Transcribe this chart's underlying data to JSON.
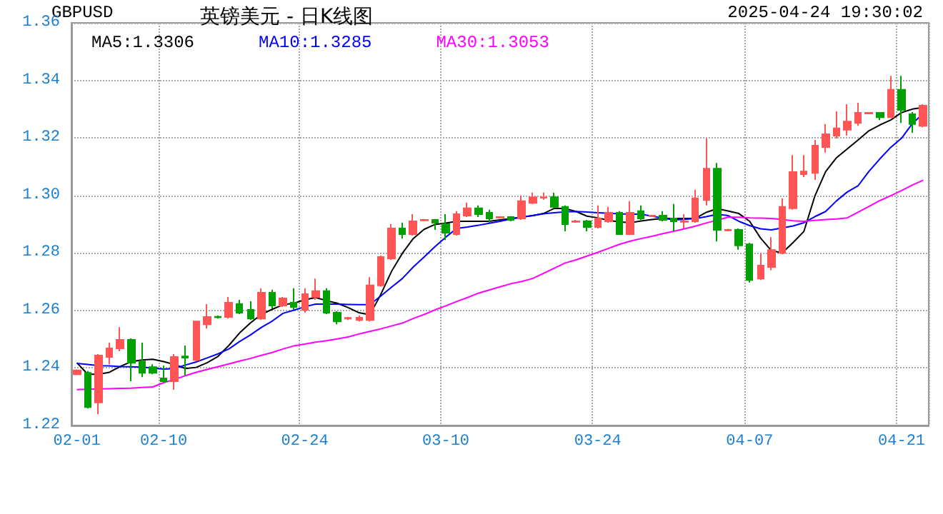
{
  "chart_data": {
    "type": "candlestick",
    "title": "英镑美元 - 日K线图",
    "annotations": [
      "GBPUSD",
      "2025-04-24 19:30:02"
    ],
    "categories": [
      "02-01",
      null,
      null,
      null,
      null,
      null,
      null,
      null,
      "02-10",
      null,
      null,
      null,
      null,
      null,
      null,
      null,
      null,
      null,
      null,
      null,
      null,
      "02-24",
      null,
      null,
      null,
      null,
      null,
      null,
      null,
      null,
      null,
      null,
      null,
      null,
      "03-10",
      null,
      null,
      null,
      null,
      null,
      null,
      null,
      null,
      null,
      null,
      null,
      null,
      null,
      "03-24",
      null,
      null,
      null,
      null,
      null,
      null,
      null,
      null,
      null,
      null,
      null,
      null,
      null,
      "04-07",
      null,
      null,
      null,
      null,
      null,
      null,
      null,
      null,
      null,
      null,
      null,
      null,
      null,
      "04-21",
      null,
      null
    ],
    "ohlc": [
      [
        1.2378,
        1.2395,
        1.2375,
        1.2392
      ],
      [
        1.2383,
        1.239,
        1.2259,
        1.2264
      ],
      [
        1.228,
        1.2448,
        1.2239,
        1.2443
      ],
      [
        1.2438,
        1.2488,
        1.2413,
        1.2468
      ],
      [
        1.2468,
        1.2542,
        1.2458,
        1.2498
      ],
      [
        1.2498,
        1.2503,
        1.2354,
        1.2418
      ],
      [
        1.2423,
        1.2488,
        1.2368,
        1.2383
      ],
      [
        1.2403,
        1.2413,
        1.2378,
        1.2383
      ],
      [
        1.2364,
        1.2408,
        1.2354,
        1.2354
      ],
      [
        1.2354,
        1.2448,
        1.2324,
        1.2438
      ],
      [
        1.244,
        1.2478,
        1.2374,
        1.2436
      ],
      [
        1.2428,
        1.2562,
        1.2423,
        1.2562
      ],
      [
        1.2552,
        1.2622,
        1.2537,
        1.2577
      ],
      [
        1.2578,
        1.2582,
        1.2572,
        1.2576
      ],
      [
        1.2577,
        1.2647,
        1.2572,
        1.2627
      ],
      [
        1.2622,
        1.2637,
        1.2587,
        1.2592
      ],
      [
        1.2602,
        1.2632,
        1.2567,
        1.2572
      ],
      [
        1.2572,
        1.2677,
        1.2567,
        1.2662
      ],
      [
        1.2662,
        1.2672,
        1.2607,
        1.2617
      ],
      [
        1.2617,
        1.2647,
        1.2612,
        1.2642
      ],
      [
        1.2627,
        1.2677,
        1.2602,
        1.2612
      ],
      [
        1.2602,
        1.2677,
        1.2592,
        1.2657
      ],
      [
        1.2647,
        1.2711,
        1.2637,
        1.2667
      ],
      [
        1.2667,
        1.2677,
        1.2587,
        1.2592
      ],
      [
        1.2592,
        1.2597,
        1.2552,
        1.2562
      ],
      [
        1.2572,
        1.2577,
        1.2567,
        1.2574
      ],
      [
        1.2567,
        1.2582,
        1.2562,
        1.2575
      ],
      [
        1.2567,
        1.2716,
        1.2562,
        1.2687
      ],
      [
        1.2687,
        1.2791,
        1.2682,
        1.2786
      ],
      [
        1.2781,
        1.29,
        1.2776,
        1.2885
      ],
      [
        1.2885,
        1.2905,
        1.285,
        1.2865
      ],
      [
        1.2865,
        1.2935,
        1.286,
        1.291
      ],
      [
        1.2913,
        1.2918,
        1.291,
        1.2915
      ],
      [
        1.2915,
        1.2918,
        1.288,
        1.2905
      ],
      [
        1.29,
        1.2935,
        1.2845,
        1.287
      ],
      [
        1.2865,
        1.2945,
        1.286,
        1.2935
      ],
      [
        1.293,
        1.2975,
        1.2925,
        1.2955
      ],
      [
        1.2955,
        1.2965,
        1.2925,
        1.2935
      ],
      [
        1.294,
        1.295,
        1.2905,
        1.292
      ],
      [
        1.2923,
        1.2927,
        1.292,
        1.2925
      ],
      [
        1.2925,
        1.2928,
        1.291,
        1.2915
      ],
      [
        1.292,
        1.3,
        1.2915,
        1.298
      ],
      [
        1.2974,
        1.301,
        1.297,
        1.2994
      ],
      [
        1.2992,
        1.301,
        1.2985,
        1.2994
      ],
      [
        1.2994,
        1.3009,
        1.2955,
        1.296
      ],
      [
        1.296,
        1.2965,
        1.2875,
        1.29
      ],
      [
        1.2908,
        1.2915,
        1.2905,
        1.291
      ],
      [
        1.291,
        1.2915,
        1.2875,
        1.289
      ],
      [
        1.289,
        1.2965,
        1.2885,
        1.292
      ],
      [
        1.291,
        1.296,
        1.2905,
        1.294
      ],
      [
        1.294,
        1.2945,
        1.2865,
        1.2865
      ],
      [
        1.2865,
        1.298,
        1.2862,
        1.294
      ],
      [
        1.2945,
        1.2965,
        1.2915,
        1.292
      ],
      [
        1.2928,
        1.2932,
        1.2925,
        1.293
      ],
      [
        1.293,
        1.2945,
        1.291,
        1.2915
      ],
      [
        1.292,
        1.297,
        1.2875,
        1.291
      ],
      [
        1.2908,
        1.2935,
        1.2885,
        1.291
      ],
      [
        1.291,
        1.302,
        1.2905,
        1.299
      ],
      [
        1.2984,
        1.3198,
        1.2965,
        1.3093
      ],
      [
        1.3093,
        1.3113,
        1.284,
        1.288
      ],
      [
        1.2878,
        1.2884,
        1.2875,
        1.288
      ],
      [
        1.288,
        1.2885,
        1.2811,
        1.2826
      ],
      [
        1.283,
        1.2835,
        1.2697,
        1.2706
      ],
      [
        1.2711,
        1.28,
        1.2706,
        1.2756
      ],
      [
        1.2751,
        1.2855,
        1.274,
        1.281
      ],
      [
        1.28,
        1.299,
        1.2795,
        1.296
      ],
      [
        1.2955,
        1.314,
        1.295,
        1.3081
      ],
      [
        1.3074,
        1.314,
        1.3064,
        1.3083
      ],
      [
        1.3078,
        1.3193,
        1.3054,
        1.3173
      ],
      [
        1.3168,
        1.3248,
        1.3149,
        1.3213
      ],
      [
        1.3208,
        1.3292,
        1.3198,
        1.3233
      ],
      [
        1.3228,
        1.3317,
        1.3208,
        1.3257
      ],
      [
        1.3252,
        1.3322,
        1.3242,
        1.3287
      ],
      [
        1.3285,
        1.329,
        1.3282,
        1.3287
      ],
      [
        1.3287,
        1.329,
        1.3262,
        1.3272
      ],
      [
        1.3272,
        1.3416,
        1.327,
        1.3367
      ],
      [
        1.3367,
        1.3416,
        1.3252,
        1.3297
      ],
      [
        1.3282,
        1.329,
        1.3218,
        1.3248
      ],
      [
        1.3242,
        1.3317,
        1.3237,
        1.3312
      ]
    ],
    "colors": [
      "#ff5555",
      "#00a000",
      "#ff5555",
      "#ff5555",
      "#ff5555",
      "#00a000",
      "#00a000",
      "#00a000",
      "#00a000",
      "#ff5555",
      "#00a000",
      "#ff5555",
      "#ff5555",
      "#00a000",
      "#ff5555",
      "#00a000",
      "#00a000",
      "#ff5555",
      "#00a000",
      "#ff5555",
      "#00a000",
      "#ff5555",
      "#ff5555",
      "#00a000",
      "#00a000",
      "#ff5555",
      "#ff5555",
      "#ff5555",
      "#ff5555",
      "#ff5555",
      "#00a000",
      "#ff5555",
      "#ff5555",
      "#00a000",
      "#00a000",
      "#ff5555",
      "#ff5555",
      "#00a000",
      "#00a000",
      "#ff5555",
      "#00a000",
      "#ff5555",
      "#ff5555",
      "#ff5555",
      "#00a000",
      "#00a000",
      "#ff5555",
      "#00a000",
      "#ff5555",
      "#ff5555",
      "#00a000",
      "#ff5555",
      "#00a000",
      "#ff5555",
      "#00a000",
      "#00a000",
      "#ff5555",
      "#ff5555",
      "#ff5555",
      "#00a000",
      "#ff5555",
      "#00a000",
      "#00a000",
      "#ff5555",
      "#ff5555",
      "#ff5555",
      "#ff5555",
      "#ff5555",
      "#ff5555",
      "#ff5555",
      "#ff5555",
      "#ff5555",
      "#ff5555",
      "#ff5555",
      "#00a000",
      "#ff5555",
      "#00a000",
      "#00a000",
      "#ff5555"
    ],
    "series": [
      {
        "type": "line",
        "name": "MA5:1.3306",
        "color": "#000000",
        "values": [
          1.2418,
          1.2378,
          1.2378,
          1.2385,
          1.2405,
          1.2422,
          1.2428,
          1.243,
          1.2422,
          1.2412,
          1.2398,
          1.2402,
          1.2418,
          1.244,
          1.2478,
          1.2522,
          1.2557,
          1.2586,
          1.2604,
          1.262,
          1.2625,
          1.2637,
          1.2645,
          1.2634,
          1.2625,
          1.261,
          1.2592,
          1.2585,
          1.2655,
          1.2736,
          1.2799,
          1.285,
          1.2882,
          1.2899,
          1.2904,
          1.291,
          1.291,
          1.291,
          1.291,
          1.2915,
          1.2919,
          1.2925,
          1.293,
          1.2937,
          1.2955,
          1.2954,
          1.2944,
          1.2928,
          1.2922,
          1.2913,
          1.2908,
          1.2905,
          1.2911,
          1.2916,
          1.292,
          1.292,
          1.292,
          1.292,
          1.2941,
          1.2954,
          1.2946,
          1.2937,
          1.291,
          1.2852,
          1.2808,
          1.28,
          1.2836,
          1.2875,
          1.2997,
          1.3083,
          1.3131,
          1.3162,
          1.3193,
          1.3225,
          1.3245,
          1.3262,
          1.3288,
          1.33,
          1.3306
        ]
      },
      {
        "type": "line",
        "name": "MA10:1.3285",
        "color": "#0000ff",
        "values": [
          1.2416,
          1.2412,
          1.2408,
          1.2407,
          1.2405,
          1.2404,
          1.2403,
          1.24,
          1.2396,
          1.2398,
          1.241,
          1.2421,
          1.2435,
          1.2449,
          1.2466,
          1.2492,
          1.2515,
          1.2541,
          1.2563,
          1.259,
          1.2601,
          1.2613,
          1.2622,
          1.2622,
          1.2622,
          1.2621,
          1.262,
          1.262,
          1.265,
          1.2681,
          1.2711,
          1.2751,
          1.2786,
          1.2822,
          1.2855,
          1.2885,
          1.289,
          1.2896,
          1.2903,
          1.291,
          1.2918,
          1.2924,
          1.293,
          1.2936,
          1.294,
          1.2943,
          1.2944,
          1.2942,
          1.294,
          1.2938,
          1.2936,
          1.2935,
          1.2935,
          1.2928,
          1.2921,
          1.2915,
          1.2917,
          1.2919,
          1.2926,
          1.2934,
          1.293,
          1.291,
          1.2895,
          1.2884,
          1.288,
          1.2887,
          1.2894,
          1.2905,
          1.2926,
          1.2944,
          1.2981,
          1.3012,
          1.3034,
          1.3084,
          1.3127,
          1.3167,
          1.3199,
          1.325,
          1.3285
        ]
      },
      {
        "type": "line",
        "name": "MA30:1.3053",
        "color": "#ff00ff",
        "values": [
          1.2325,
          1.2326,
          1.2327,
          1.2328,
          1.2329,
          1.233,
          1.2332,
          1.2334,
          1.2349,
          1.236,
          1.2373,
          1.2385,
          1.2395,
          1.2404,
          1.2414,
          1.2424,
          1.2433,
          1.2444,
          1.2454,
          1.2466,
          1.2477,
          1.2483,
          1.249,
          1.2495,
          1.2501,
          1.2508,
          1.2518,
          1.2527,
          1.2536,
          1.2546,
          1.2556,
          1.2572,
          1.2586,
          1.2602,
          1.2616,
          1.2631,
          1.2645,
          1.266,
          1.2671,
          1.2682,
          1.2693,
          1.2701,
          1.2711,
          1.2729,
          1.2747,
          1.2765,
          1.2776,
          1.2789,
          1.2802,
          1.2816,
          1.283,
          1.2841,
          1.285,
          1.2858,
          1.2867,
          1.2875,
          1.2884,
          1.2893,
          1.2904,
          1.2914,
          1.2924,
          1.2924,
          1.2922,
          1.2921,
          1.292,
          1.2916,
          1.2912,
          1.291,
          1.2913,
          1.2916,
          1.2918,
          1.2922,
          1.2942,
          1.2962,
          1.2982,
          1.2999,
          1.3017,
          1.3036,
          1.3053
        ]
      }
    ],
    "ylim": [
      1.22,
      1.36
    ],
    "yticks": [
      1.22,
      1.24,
      1.26,
      1.28,
      {
        "value": 1.3,
        "label": "1.30"
      },
      1.32,
      1.34,
      1.36
    ],
    "grid": true,
    "legend": "top left",
    "marker": "none"
  }
}
